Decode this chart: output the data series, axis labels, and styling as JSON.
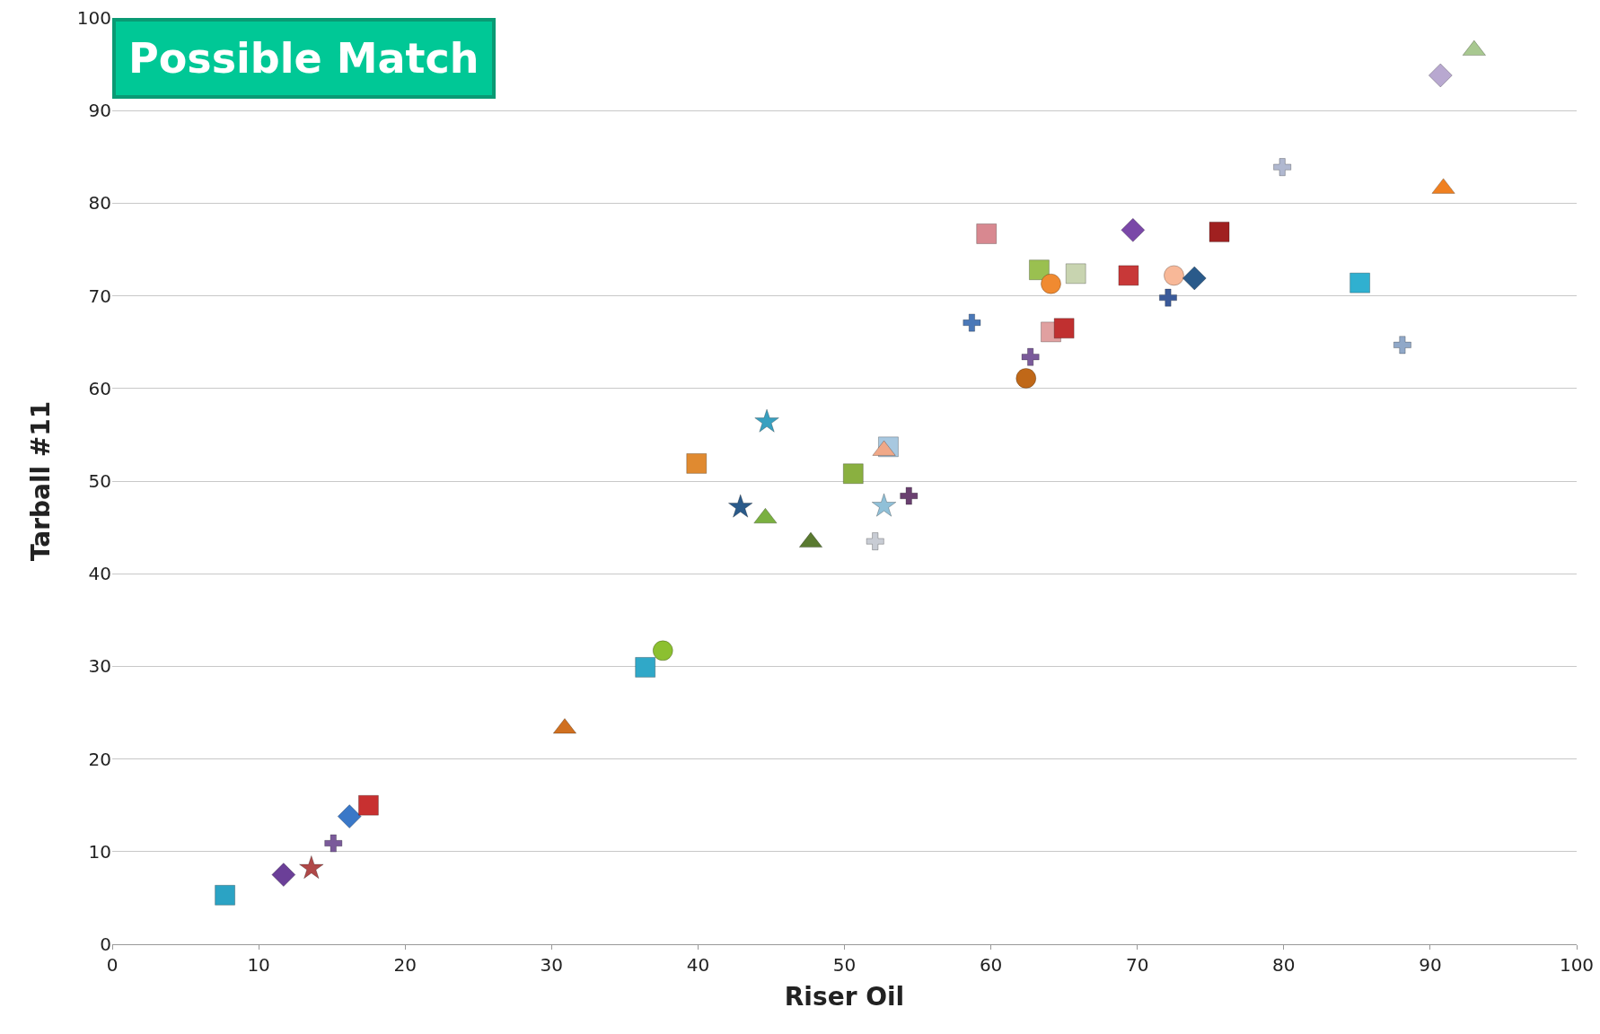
{
  "chart_data": {
    "type": "scatter",
    "xlabel": "Riser Oil",
    "ylabel": "Tarball #11",
    "xlim": [
      0,
      100
    ],
    "ylim": [
      0,
      100
    ],
    "xticks": [
      0,
      10,
      20,
      30,
      40,
      50,
      60,
      70,
      80,
      90,
      100
    ],
    "yticks": [
      0,
      10,
      20,
      30,
      40,
      50,
      60,
      70,
      80,
      90,
      100
    ],
    "grid": "y",
    "annotations": [
      "Possible Match"
    ],
    "series": [
      {
        "x": [
          7.7
        ],
        "values": [
          5.3
        ],
        "color": "#2ba3c4",
        "marker": "square"
      },
      {
        "x": [
          11.7
        ],
        "values": [
          7.5
        ],
        "color": "#6b3f98",
        "marker": "diamond"
      },
      {
        "x": [
          13.6
        ],
        "values": [
          8.2
        ],
        "color": "#b04848",
        "marker": "star"
      },
      {
        "x": [
          15.1
        ],
        "values": [
          10.9
        ],
        "color": "#7a5a9a",
        "marker": "cross"
      },
      {
        "x": [
          16.2
        ],
        "values": [
          13.8
        ],
        "color": "#3a78c8",
        "marker": "diamond"
      },
      {
        "x": [
          17.5
        ],
        "values": [
          15.0
        ],
        "color": "#c83030",
        "marker": "square"
      },
      {
        "x": [
          30.9
        ],
        "values": [
          23.3
        ],
        "color": "#d07020",
        "marker": "triangle"
      },
      {
        "x": [
          36.4
        ],
        "values": [
          29.9
        ],
        "color": "#30a8c8",
        "marker": "square"
      },
      {
        "x": [
          37.6
        ],
        "values": [
          31.7
        ],
        "color": "#8cc030",
        "marker": "circle"
      },
      {
        "x": [
          39.9
        ],
        "values": [
          51.9
        ],
        "color": "#e08a30",
        "marker": "square"
      },
      {
        "x": [
          42.9
        ],
        "values": [
          47.2
        ],
        "color": "#2a5a8a",
        "marker": "star"
      },
      {
        "x": [
          44.7
        ],
        "values": [
          56.4
        ],
        "color": "#38a0c0",
        "marker": "star"
      },
      {
        "x": [
          44.6
        ],
        "values": [
          46.0
        ],
        "color": "#7ab040",
        "marker": "triangle"
      },
      {
        "x": [
          47.7
        ],
        "values": [
          43.4
        ],
        "color": "#5a7a30",
        "marker": "triangle"
      },
      {
        "x": [
          50.6
        ],
        "values": [
          50.8
        ],
        "color": "#8ab040",
        "marker": "square"
      },
      {
        "x": [
          52.1
        ],
        "values": [
          43.5
        ],
        "color": "#c8ccd4",
        "marker": "cross"
      },
      {
        "x": [
          52.7
        ],
        "values": [
          47.3
        ],
        "color": "#90c0d8",
        "marker": "star"
      },
      {
        "x": [
          53.0
        ],
        "values": [
          53.7
        ],
        "color": "#a8c8e0",
        "marker": "square"
      },
      {
        "x": [
          52.7
        ],
        "values": [
          53.3
        ],
        "color": "#f0a888",
        "marker": "triangle"
      },
      {
        "x": [
          54.4
        ],
        "values": [
          48.4
        ],
        "color": "#6a4070",
        "marker": "cross"
      },
      {
        "x": [
          58.7
        ],
        "values": [
          67.1
        ],
        "color": "#4a78b8",
        "marker": "cross"
      },
      {
        "x": [
          59.7
        ],
        "values": [
          76.7
        ],
        "color": "#d88890",
        "marker": "square"
      },
      {
        "x": [
          62.4
        ],
        "values": [
          61.1
        ],
        "color": "#c06818",
        "marker": "circle"
      },
      {
        "x": [
          62.7
        ],
        "values": [
          63.4
        ],
        "color": "#7a5a9a",
        "marker": "cross"
      },
      {
        "x": [
          63.3
        ],
        "values": [
          72.8
        ],
        "color": "#9ac050",
        "marker": "square"
      },
      {
        "x": [
          64.1
        ],
        "values": [
          71.3
        ],
        "color": "#f08a30",
        "marker": "circle"
      },
      {
        "x": [
          64.1
        ],
        "values": [
          66.1
        ],
        "color": "#e0a0a0",
        "marker": "square"
      },
      {
        "x": [
          65.0
        ],
        "values": [
          66.5
        ],
        "color": "#c03030",
        "marker": "square"
      },
      {
        "x": [
          65.8
        ],
        "values": [
          72.4
        ],
        "color": "#c8d4b0",
        "marker": "square"
      },
      {
        "x": [
          69.4
        ],
        "values": [
          72.2
        ],
        "color": "#c83838",
        "marker": "square"
      },
      {
        "x": [
          69.7
        ],
        "values": [
          77.1
        ],
        "color": "#7a48a8",
        "marker": "diamond"
      },
      {
        "x": [
          72.1
        ],
        "values": [
          69.8
        ],
        "color": "#3a5a9a",
        "marker": "cross"
      },
      {
        "x": [
          72.5
        ],
        "values": [
          72.2
        ],
        "color": "#f8b898",
        "marker": "circle"
      },
      {
        "x": [
          73.9
        ],
        "values": [
          71.9
        ],
        "color": "#2a5a8a",
        "marker": "diamond"
      },
      {
        "x": [
          75.6
        ],
        "values": [
          76.9
        ],
        "color": "#a02020",
        "marker": "square"
      },
      {
        "x": [
          79.9
        ],
        "values": [
          83.9
        ],
        "color": "#b0b8d0",
        "marker": "cross"
      },
      {
        "x": [
          85.2
        ],
        "values": [
          71.4
        ],
        "color": "#30b0d0",
        "marker": "square"
      },
      {
        "x": [
          88.1
        ],
        "values": [
          64.7
        ],
        "color": "#90a8c8",
        "marker": "cross"
      },
      {
        "x": [
          90.9
        ],
        "values": [
          81.6
        ],
        "color": "#f08020",
        "marker": "triangle"
      },
      {
        "x": [
          90.7
        ],
        "values": [
          93.8
        ],
        "color": "#b8a8d0",
        "marker": "diamond"
      },
      {
        "x": [
          93.0
        ],
        "values": [
          96.5
        ],
        "color": "#a8c890",
        "marker": "triangle"
      }
    ]
  }
}
